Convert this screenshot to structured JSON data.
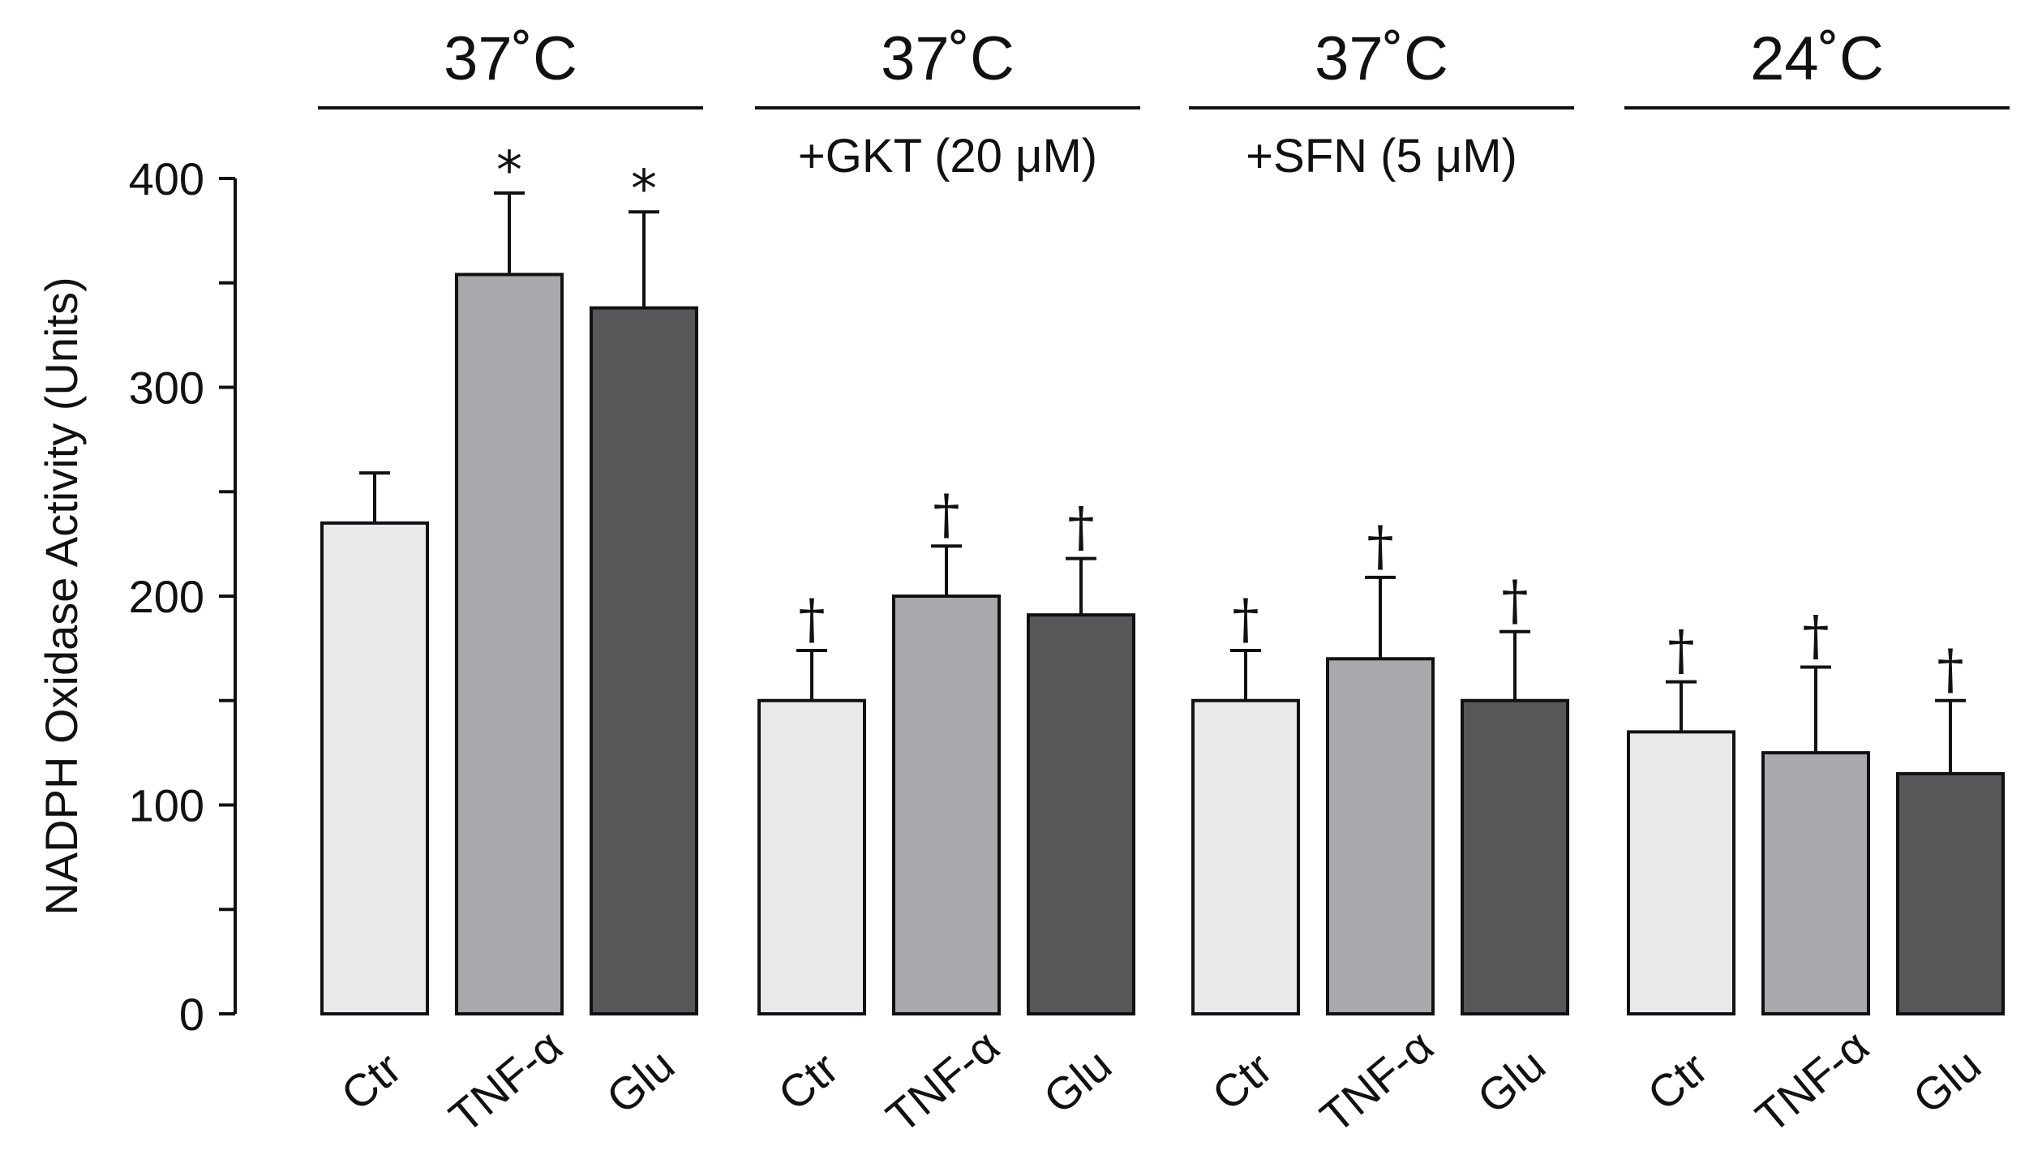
{
  "chart_data": {
    "type": "bar",
    "ylabel": "NADPH Oxidase Activity (Units)",
    "ylim": [
      0,
      400
    ],
    "yticks": [
      0,
      100,
      200,
      300,
      400
    ],
    "colors": {
      "Ctr": "#e8e9eb",
      "TNF-α": "#a8a9ac",
      "Glu": "#58585a"
    },
    "groups": [
      {
        "title": "37˚C",
        "subtitle": "",
        "bars": [
          {
            "category": "Ctr",
            "value": 235,
            "error": 24,
            "marker": ""
          },
          {
            "category": "TNF-α",
            "value": 354,
            "error": 39,
            "marker": "*"
          },
          {
            "category": "Glu",
            "value": 338,
            "error": 46,
            "marker": "*"
          }
        ]
      },
      {
        "title": "37˚C",
        "subtitle": "+GKT (20 μM)",
        "bars": [
          {
            "category": "Ctr",
            "value": 150,
            "error": 24,
            "marker": "†"
          },
          {
            "category": "TNF-α",
            "value": 200,
            "error": 24,
            "marker": "†"
          },
          {
            "category": "Glu",
            "value": 191,
            "error": 27,
            "marker": "†"
          }
        ]
      },
      {
        "title": "37˚C",
        "subtitle": "+SFN (5 μM)",
        "bars": [
          {
            "category": "Ctr",
            "value": 150,
            "error": 24,
            "marker": "†"
          },
          {
            "category": "TNF-α",
            "value": 170,
            "error": 39,
            "marker": "†"
          },
          {
            "category": "Glu",
            "value": 150,
            "error": 33,
            "marker": "†"
          }
        ]
      },
      {
        "title": "24˚C",
        "subtitle": "",
        "bars": [
          {
            "category": "Ctr",
            "value": 135,
            "error": 24,
            "marker": "†"
          },
          {
            "category": "TNF-α",
            "value": 125,
            "error": 41,
            "marker": "†"
          },
          {
            "category": "Glu",
            "value": 115,
            "error": 35,
            "marker": "†"
          }
        ]
      }
    ]
  }
}
